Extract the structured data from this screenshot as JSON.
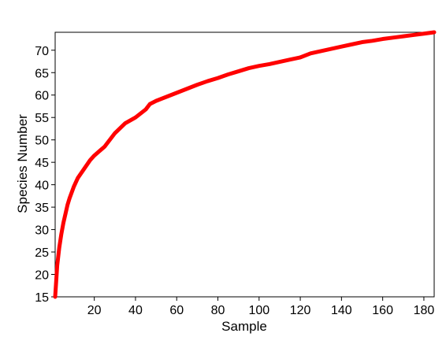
{
  "chart_data": {
    "type": "line",
    "title": "",
    "xlabel": "Sample",
    "ylabel": "Species Number",
    "xlim": [
      1,
      185
    ],
    "ylim": [
      15,
      74
    ],
    "x_ticks": [
      20,
      40,
      60,
      80,
      100,
      120,
      140,
      160,
      180
    ],
    "y_ticks": [
      15,
      20,
      25,
      30,
      35,
      40,
      45,
      50,
      55,
      60,
      65,
      70
    ],
    "grid": false,
    "legend": "none",
    "line_color": "#ff0000",
    "frame_color": "#000000",
    "series": [
      {
        "x": [
          1,
          1.5,
          2,
          3,
          4,
          5,
          6,
          7,
          8,
          10,
          12,
          15,
          18,
          20,
          22,
          25,
          30,
          35,
          40,
          45,
          47,
          50,
          55,
          60,
          65,
          70,
          75,
          80,
          85,
          90,
          95,
          100,
          105,
          110,
          115,
          120,
          125,
          130,
          135,
          140,
          145,
          150,
          155,
          160,
          165,
          170,
          175,
          180,
          185
        ],
        "y": [
          15,
          18.5,
          22,
          26,
          29,
          31.5,
          33.5,
          35.5,
          37,
          39.5,
          41.5,
          43.5,
          45.5,
          46.5,
          47.3,
          48.5,
          51.5,
          53.7,
          55,
          56.8,
          58,
          58.7,
          59.6,
          60.5,
          61.4,
          62.3,
          63.1,
          63.8,
          64.6,
          65.3,
          66,
          66.5,
          66.9,
          67.4,
          67.9,
          68.4,
          69.3,
          69.8,
          70.3,
          70.8,
          71.3,
          71.8,
          72.1,
          72.5,
          72.8,
          73.1,
          73.4,
          73.7,
          74
        ]
      }
    ]
  }
}
